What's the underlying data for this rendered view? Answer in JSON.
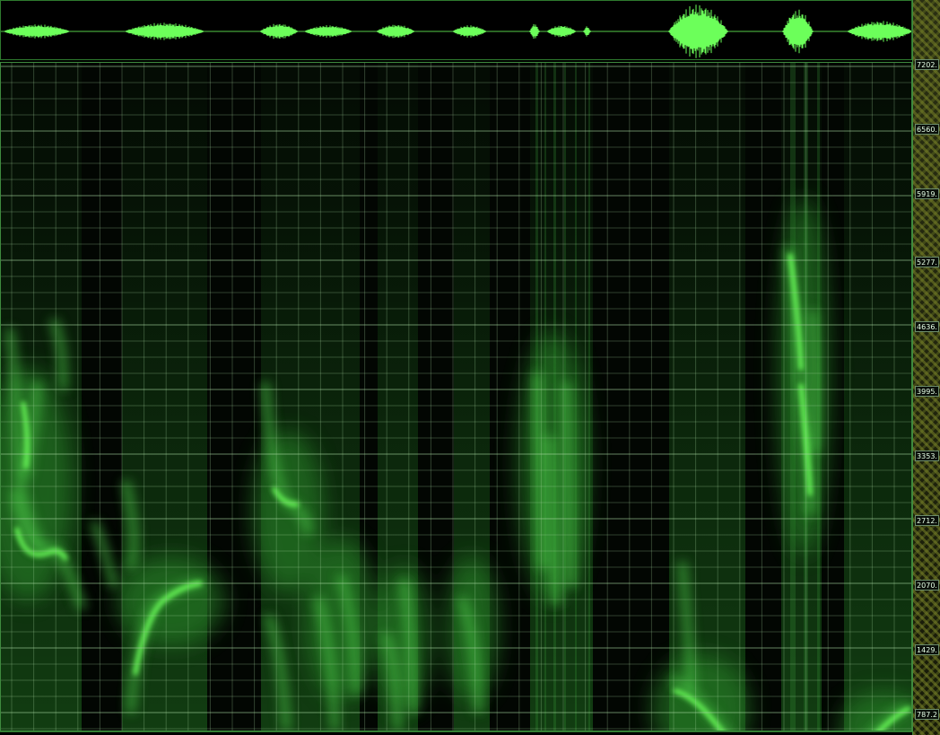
{
  "window": {
    "panels": [
      "waveform-overview",
      "spectrogram",
      "frequency-scale"
    ]
  },
  "colors": {
    "background": "#000000",
    "accent": "#6cff5a",
    "grid": "#a8d8a0",
    "frame": "#3e8a3e",
    "scale_pattern": "#7a8228"
  },
  "frequency_scale": {
    "labels": [
      "7202.",
      "6560.",
      "5919.",
      "5277.",
      "4636.",
      "3995.",
      "3353.",
      "2712.",
      "2070.",
      "1429.",
      "787.2"
    ]
  }
}
